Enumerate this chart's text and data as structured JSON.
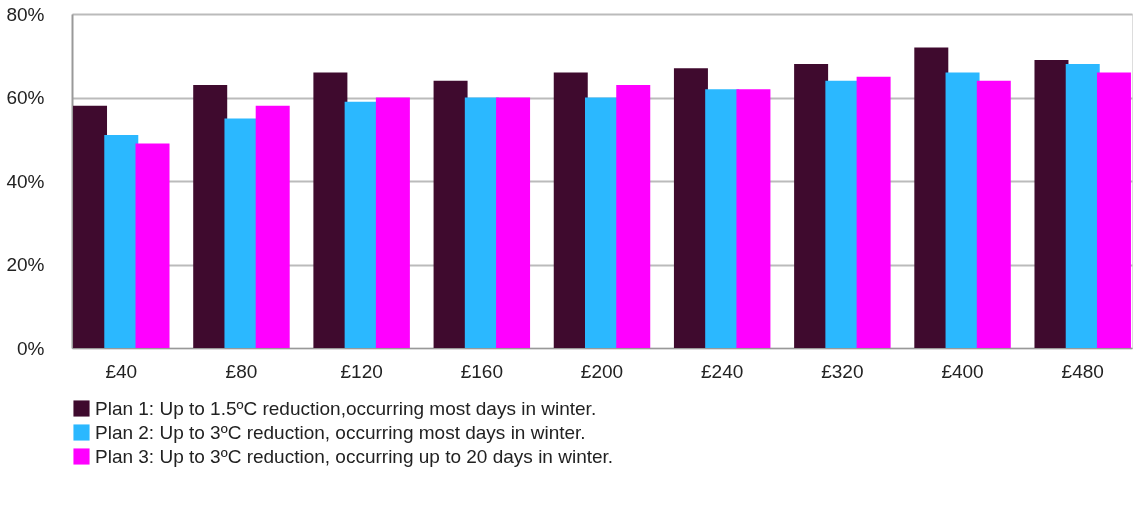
{
  "chart_data": {
    "type": "bar",
    "categories": [
      "£40",
      "£80",
      "£120",
      "£160",
      "£200",
      "£240",
      "£320",
      "£400",
      "£480"
    ],
    "series": [
      {
        "name": "Plan 1: Up to 1.5ºC reduction,occurring most days in winter.",
        "color": "#3f0a2e",
        "values": [
          58,
          63,
          66,
          64,
          66,
          67,
          68,
          72,
          69
        ]
      },
      {
        "name": "Plan 2: Up to 3ºC reduction, occurring most days in winter.",
        "color": "#2bb8ff",
        "values": [
          51,
          55,
          59,
          60,
          60,
          62,
          64,
          66,
          68
        ]
      },
      {
        "name": "Plan 3: Up to 3ºC reduction, occurring up to 20 days in winter.",
        "color": "#ff00ff",
        "values": [
          49,
          58,
          60,
          60,
          63,
          62,
          65,
          64,
          66
        ]
      }
    ],
    "ylim": [
      0,
      80
    ],
    "yticks": [
      {
        "value": 0,
        "label": "0%"
      },
      {
        "value": 20,
        "label": "20%"
      },
      {
        "value": 40,
        "label": "40%"
      },
      {
        "value": 60,
        "label": "60%"
      },
      {
        "value": 80,
        "label": "80%"
      }
    ],
    "grid": "y",
    "legend": "bottom"
  }
}
